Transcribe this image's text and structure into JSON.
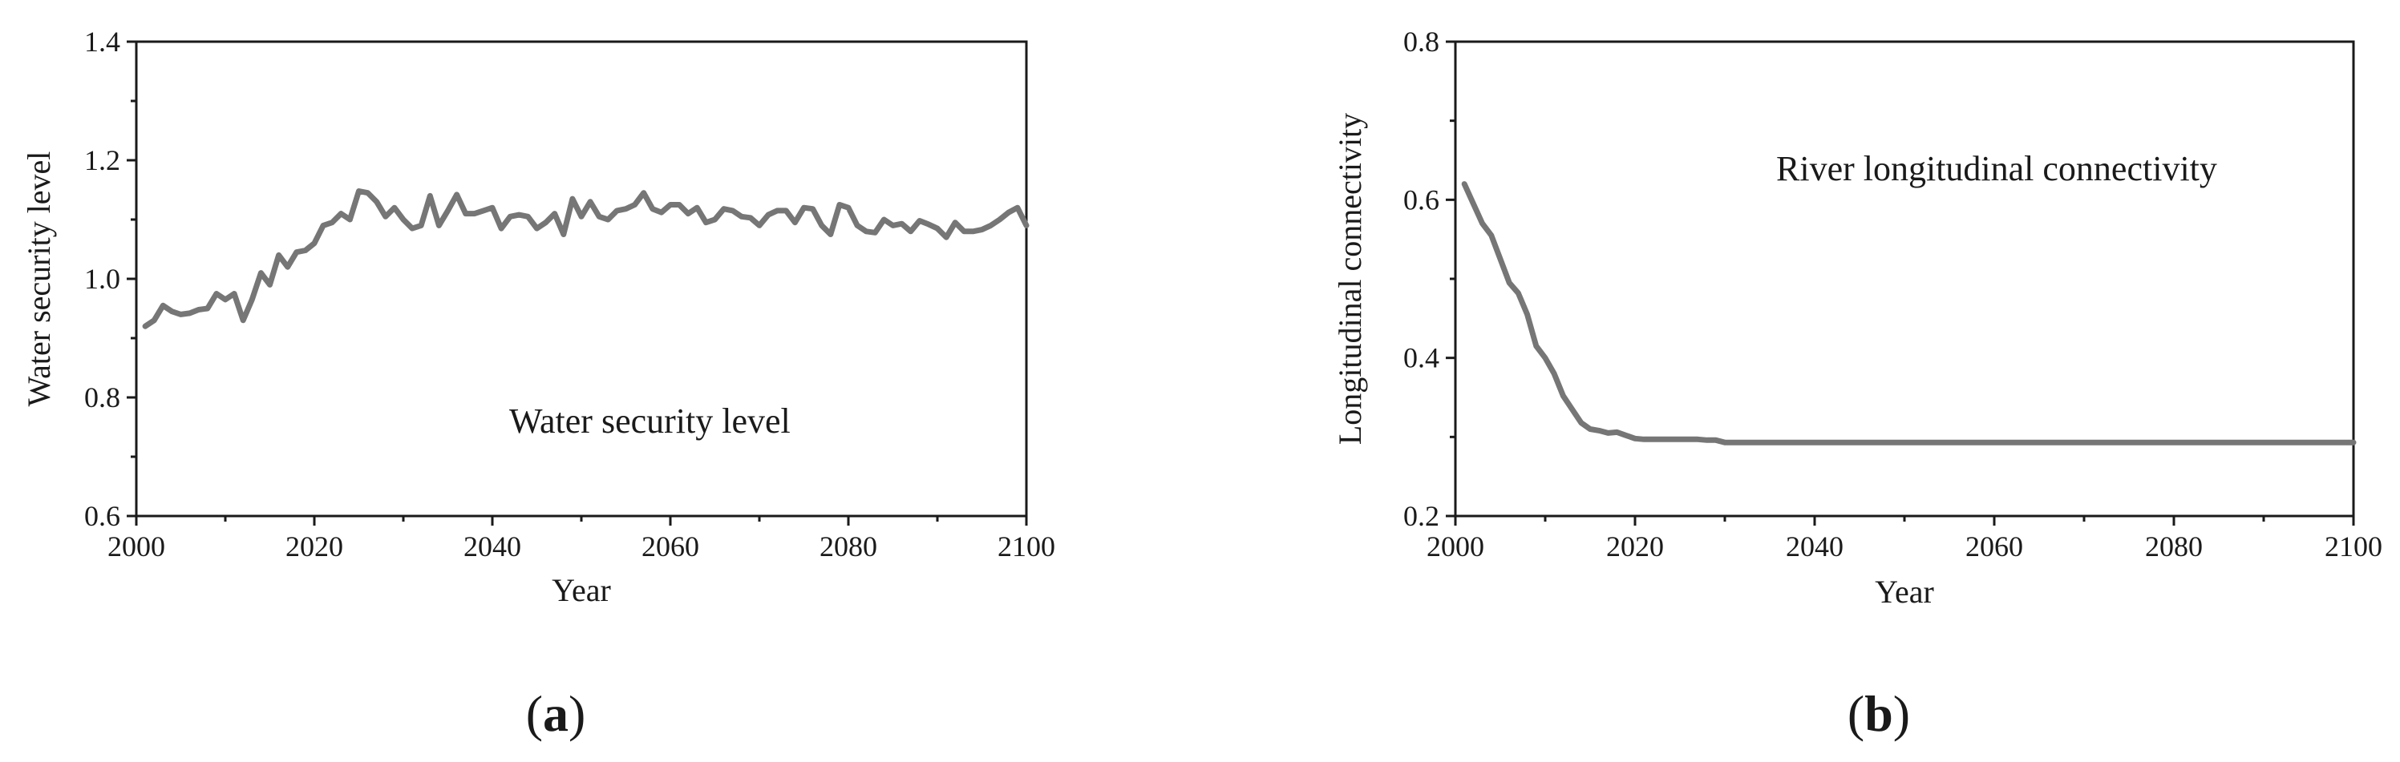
{
  "colors": {
    "series": "#767676",
    "axis": "#1a1a1a",
    "background": "#ffffff"
  },
  "chart_data": [
    {
      "type": "line",
      "panel_label": "a",
      "xlabel": "Year",
      "ylabel": "Water security level",
      "annotation": "Water security level",
      "xlim": [
        2000,
        2100
      ],
      "ylim": [
        0.6,
        1.4
      ],
      "xticks": [
        "2000",
        "2020",
        "2040",
        "2060",
        "2080",
        "2100"
      ],
      "yticks": [
        "0.6",
        "0.8",
        "1.0",
        "1.2",
        "1.4"
      ],
      "grid": false,
      "series": [
        {
          "x": [
            2001,
            2002,
            2003,
            2004,
            2005,
            2006,
            2007,
            2008,
            2009,
            2010,
            2011,
            2012,
            2013,
            2014,
            2015,
            2016,
            2017,
            2018,
            2019,
            2020,
            2021,
            2022,
            2023,
            2024,
            2025,
            2026,
            2027,
            2028,
            2029,
            2030,
            2031,
            2032,
            2033,
            2034,
            2035,
            2036,
            2037,
            2038,
            2039,
            2040,
            2041,
            2042,
            2043,
            2044,
            2045,
            2046,
            2047,
            2048,
            2049,
            2050,
            2051,
            2052,
            2053,
            2054,
            2055,
            2056,
            2057,
            2058,
            2059,
            2060,
            2061,
            2062,
            2063,
            2064,
            2065,
            2066,
            2067,
            2068,
            2069,
            2070,
            2071,
            2072,
            2073,
            2074,
            2075,
            2076,
            2077,
            2078,
            2079,
            2080,
            2081,
            2082,
            2083,
            2084,
            2085,
            2086,
            2087,
            2088,
            2089,
            2090,
            2091,
            2092,
            2093,
            2094,
            2095,
            2096,
            2097,
            2098,
            2099,
            2100
          ],
          "values": [
            0.92,
            0.93,
            0.955,
            0.945,
            0.94,
            0.942,
            0.948,
            0.95,
            0.975,
            0.965,
            0.975,
            0.93,
            0.965,
            1.01,
            0.99,
            1.04,
            1.02,
            1.045,
            1.048,
            1.06,
            1.09,
            1.095,
            1.11,
            1.1,
            1.148,
            1.145,
            1.13,
            1.105,
            1.12,
            1.1,
            1.085,
            1.09,
            1.14,
            1.09,
            1.115,
            1.142,
            1.11,
            1.11,
            1.115,
            1.12,
            1.085,
            1.105,
            1.108,
            1.105,
            1.085,
            1.095,
            1.11,
            1.075,
            1.135,
            1.105,
            1.13,
            1.105,
            1.1,
            1.115,
            1.118,
            1.125,
            1.145,
            1.118,
            1.112,
            1.125,
            1.125,
            1.11,
            1.12,
            1.095,
            1.1,
            1.118,
            1.115,
            1.105,
            1.103,
            1.09,
            1.108,
            1.115,
            1.115,
            1.095,
            1.12,
            1.118,
            1.09,
            1.075,
            1.125,
            1.12,
            1.09,
            1.08,
            1.078,
            1.1,
            1.09,
            1.093,
            1.08,
            1.098,
            1.092,
            1.085,
            1.07,
            1.095,
            1.08,
            1.08,
            1.083,
            1.09,
            1.1,
            1.112,
            1.12,
            1.09
          ]
        }
      ]
    },
    {
      "type": "line",
      "panel_label": "b",
      "xlabel": "Year",
      "ylabel": "Longitudinal connectivity",
      "annotation": "River longitudinal connectivity",
      "xlim": [
        2000,
        2100
      ],
      "ylim": [
        0.2,
        0.8
      ],
      "xticks": [
        "2000",
        "2020",
        "2040",
        "2060",
        "2080",
        "2100"
      ],
      "yticks": [
        "0.2",
        "0.4",
        "0.6",
        "0.8"
      ],
      "grid": false,
      "series": [
        {
          "x": [
            2001,
            2002,
            2003,
            2004,
            2005,
            2006,
            2007,
            2008,
            2009,
            2010,
            2011,
            2012,
            2013,
            2014,
            2015,
            2016,
            2017,
            2018,
            2019,
            2020,
            2021,
            2022,
            2023,
            2024,
            2025,
            2026,
            2027,
            2028,
            2029,
            2030,
            2100
          ],
          "values": [
            0.62,
            0.595,
            0.57,
            0.555,
            0.525,
            0.495,
            0.482,
            0.455,
            0.415,
            0.4,
            0.38,
            0.352,
            0.335,
            0.318,
            0.31,
            0.308,
            0.305,
            0.306,
            0.302,
            0.298,
            0.297,
            0.297,
            0.297,
            0.297,
            0.297,
            0.297,
            0.297,
            0.296,
            0.296,
            0.293,
            0.293
          ]
        }
      ]
    }
  ]
}
